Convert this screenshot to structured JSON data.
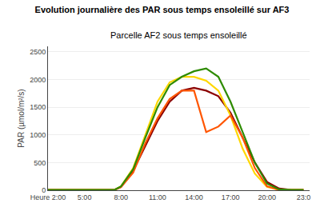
{
  "chart_data": {
    "type": "line",
    "title": "Evolution journalière des PAR sous temps ensoleillé sur AF3",
    "subtitle": "Parcelle AF2 sous temps ensoleillé",
    "ylabel": "PAR (µmol/m²/s)",
    "x": [
      2,
      3,
      4,
      5,
      6,
      7,
      7.5,
      8,
      9,
      10,
      11,
      12,
      13,
      14,
      15,
      16,
      17,
      18,
      19,
      20,
      21,
      22,
      23
    ],
    "series": [
      {
        "color": "#8B0000",
        "values": [
          5,
          5,
          5,
          5,
          5,
          5,
          10,
          60,
          350,
          800,
          1250,
          1600,
          1800,
          1850,
          1800,
          1700,
          1400,
          950,
          500,
          150,
          30,
          5,
          5
        ]
      },
      {
        "color": "#FFD700",
        "values": [
          5,
          5,
          5,
          5,
          5,
          5,
          10,
          70,
          400,
          1000,
          1600,
          1950,
          2050,
          2050,
          1980,
          1800,
          1350,
          750,
          300,
          60,
          8,
          5,
          5
        ]
      },
      {
        "color": "#FF5500",
        "values": [
          5,
          5,
          5,
          5,
          5,
          5,
          10,
          55,
          320,
          850,
          1300,
          1650,
          1800,
          1800,
          1050,
          1150,
          1350,
          950,
          400,
          70,
          8,
          5,
          5
        ]
      },
      {
        "color": "#2E8B00",
        "values": [
          5,
          5,
          5,
          5,
          5,
          5,
          10,
          70,
          380,
          950,
          1500,
          1900,
          2050,
          2150,
          2200,
          2050,
          1600,
          1050,
          500,
          120,
          15,
          5,
          5
        ]
      }
    ],
    "xlim": [
      2,
      23.5
    ],
    "xticks": [
      {
        "value": 2,
        "label": "Heure 2:00"
      },
      {
        "value": 5,
        "label": "5:00"
      },
      {
        "value": 8,
        "label": "8:00"
      },
      {
        "value": 11,
        "label": "11:00"
      },
      {
        "value": 14,
        "label": "14:00"
      },
      {
        "value": 17,
        "label": "17:00"
      },
      {
        "value": 20,
        "label": "20:00"
      },
      {
        "value": 23,
        "label": "23:0"
      }
    ],
    "ylim": [
      0,
      2600
    ],
    "yticks": [
      0,
      500,
      1000,
      1500,
      2000,
      2500
    ],
    "grid": "y"
  }
}
